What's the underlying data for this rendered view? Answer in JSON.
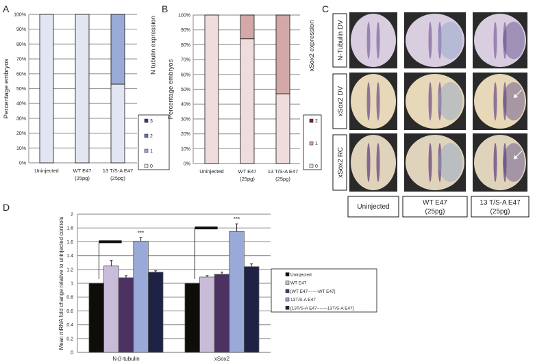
{
  "panels": {
    "A": "A",
    "B": "B",
    "C": "C",
    "D": "D"
  },
  "chart_data": [
    {
      "panel": "A",
      "type": "bar",
      "stacked": true,
      "categories": [
        "Uninjected",
        "WT E47\n(25pg)",
        "13 T/S-A E47\n(25pg)"
      ],
      "ylabel": "Percentage embryos",
      "legend_title": "N tubulin expression",
      "ylim": [
        0,
        100
      ],
      "yticks": [
        "0%",
        "10%",
        "20%",
        "30%",
        "40%",
        "50%",
        "60%",
        "70%",
        "80%",
        "90%",
        "100%"
      ],
      "grid": true,
      "legend_position": "right",
      "series": [
        {
          "name": "0",
          "color": "#e2e6f2",
          "values": [
            100,
            100,
            53
          ]
        },
        {
          "name": "1",
          "color": "#9aaad6",
          "values": [
            0,
            0,
            47
          ]
        },
        {
          "name": "2",
          "color": "#5b6fb5",
          "values": [
            0,
            0,
            0
          ]
        },
        {
          "name": "3",
          "color": "#2a3a78",
          "values": [
            0,
            0,
            0
          ]
        }
      ]
    },
    {
      "panel": "B",
      "type": "bar",
      "stacked": true,
      "categories": [
        "Uninjected",
        "WT E47\n(25pg)",
        "13 T/S-A E47\n(25pg)"
      ],
      "ylabel": "Percentage embryos",
      "legend_title": "xSox2 expression",
      "ylim": [
        0,
        100
      ],
      "yticks": [
        "0%",
        "10%",
        "20%",
        "30%",
        "40%",
        "50%",
        "60%",
        "70%",
        "80%",
        "90%",
        "100%"
      ],
      "grid": true,
      "legend_position": "right",
      "series": [
        {
          "name": "0",
          "color": "#efdcdc",
          "values": [
            100,
            84,
            47
          ]
        },
        {
          "name": "1",
          "color": "#d4a8a8",
          "values": [
            0,
            16,
            53
          ]
        },
        {
          "name": "2",
          "color": "#7a2020",
          "values": [
            0,
            0,
            0
          ]
        }
      ]
    },
    {
      "panel": "D",
      "type": "bar",
      "categories": [
        "N-β-tubulin",
        "xSox2"
      ],
      "ylabel": "Mean mRNA fold change relative to uninjected controls",
      "ylim": [
        0,
        2
      ],
      "yticks": [
        "0",
        "0.2",
        "0.4",
        "0.6",
        "0.8",
        "1",
        "1.2",
        "1.4",
        "1.6",
        "1.8",
        "2"
      ],
      "grid": true,
      "legend_position": "right",
      "annotations": [
        "***",
        "***"
      ],
      "series": [
        {
          "name": "Uninjected",
          "color": "#0d0d0a",
          "values": [
            1,
            1
          ],
          "errors": [
            0,
            0
          ]
        },
        {
          "name": "WT E47",
          "color": "#c8bcd9",
          "values": [
            1.25,
            1.09
          ],
          "errors": [
            0.08,
            0.02
          ]
        },
        {
          "name": "[WT E47~~~~WT E47]",
          "color": "#4b3263",
          "values": [
            1.08,
            1.13
          ],
          "errors": [
            0.03,
            0.03
          ]
        },
        {
          "name": "13T/S-A E47",
          "color": "#9aaad8",
          "values": [
            1.61,
            1.75
          ],
          "errors": [
            0.05,
            0.11
          ]
        },
        {
          "name": "[13T/S-A E47~~~~13T/S-A E47]",
          "color": "#1e2346",
          "values": [
            1.16,
            1.24
          ],
          "errors": [
            0.02,
            0.04
          ]
        }
      ]
    }
  ],
  "panel_c": {
    "row_labels": [
      "N-Tubulin DV",
      "xSox2 DV",
      "xSox2 RC"
    ],
    "column_labels": [
      "Uninjected",
      "WT E47\n(25pg)",
      "13 T/S-A E47\n(25pg)"
    ]
  }
}
